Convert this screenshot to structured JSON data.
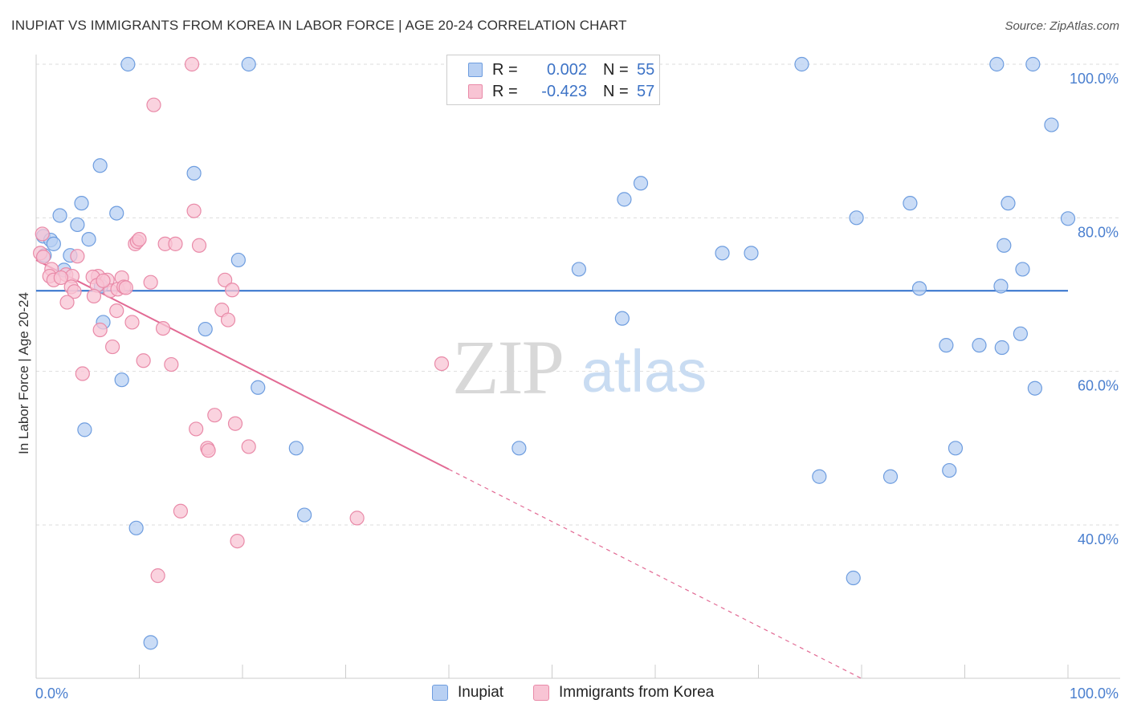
{
  "title": "INUPIAT VS IMMIGRANTS FROM KOREA IN LABOR FORCE | AGE 20-24 CORRELATION CHART",
  "source": "Source: ZipAtlas.com",
  "colors": {
    "blue_fill": "#b8d0f3",
    "blue_stroke": "#6e9ddf",
    "blue_line": "#2f6fcc",
    "pink_fill": "#f8c4d4",
    "pink_stroke": "#e98aa8",
    "pink_line": "#e26a94",
    "grid": "#dddddd",
    "axis": "#cccccc"
  },
  "legend": {
    "r_label": "R =",
    "n_label": "N =",
    "series": [
      {
        "r": "0.002",
        "n": "55"
      },
      {
        "r": "-0.423",
        "n": "57"
      }
    ]
  },
  "watermark": {
    "zip": "ZIP",
    "atlas": "atlas"
  },
  "chart_data": {
    "type": "scatter",
    "title": "INUPIAT VS IMMIGRANTS FROM KOREA IN LABOR FORCE | AGE 20-24 CORRELATION CHART",
    "xlabel": "",
    "ylabel": "In Labor Force | Age 20-24",
    "xlim": [
      0,
      100
    ],
    "ylim": [
      20,
      101
    ],
    "x_tick_labels": [
      "0.0%",
      "100.0%"
    ],
    "y_ticks": [
      40,
      60,
      80,
      100
    ],
    "y_tick_labels": [
      "40.0%",
      "60.0%",
      "80.0%",
      "100.0%"
    ],
    "series": [
      {
        "name": "Inupiat",
        "trend": {
          "x": [
            0,
            100
          ],
          "y": [
            70.5,
            70.5
          ],
          "solid_to": 100
        },
        "points": [
          [
            8.9,
            100
          ],
          [
            20.6,
            100
          ],
          [
            74.2,
            100
          ],
          [
            93.1,
            100
          ],
          [
            96.6,
            100
          ],
          [
            98.4,
            92.1
          ],
          [
            6.2,
            86.8
          ],
          [
            15.3,
            85.8
          ],
          [
            58.6,
            84.5
          ],
          [
            57.0,
            82.4
          ],
          [
            4.4,
            81.9
          ],
          [
            7.8,
            80.6
          ],
          [
            2.3,
            80.3
          ],
          [
            79.5,
            80.0
          ],
          [
            84.7,
            81.9
          ],
          [
            94.2,
            81.9
          ],
          [
            100.0,
            79.9
          ],
          [
            4.0,
            79.1
          ],
          [
            5.1,
            77.2
          ],
          [
            0.7,
            77.6
          ],
          [
            1.4,
            77.1
          ],
          [
            1.7,
            76.6
          ],
          [
            93.8,
            76.4
          ],
          [
            3.3,
            75.1
          ],
          [
            0.8,
            75.1
          ],
          [
            66.5,
            75.4
          ],
          [
            69.3,
            75.4
          ],
          [
            19.6,
            74.5
          ],
          [
            52.6,
            73.3
          ],
          [
            95.6,
            73.3
          ],
          [
            2.7,
            73.2
          ],
          [
            6.3,
            71.1
          ],
          [
            85.6,
            70.8
          ],
          [
            93.5,
            71.1
          ],
          [
            56.8,
            66.9
          ],
          [
            6.5,
            66.4
          ],
          [
            16.4,
            65.5
          ],
          [
            95.4,
            64.9
          ],
          [
            88.2,
            63.4
          ],
          [
            91.4,
            63.4
          ],
          [
            93.6,
            63.1
          ],
          [
            8.3,
            58.9
          ],
          [
            21.5,
            57.9
          ],
          [
            96.8,
            57.8
          ],
          [
            4.7,
            52.4
          ],
          [
            25.2,
            50.0
          ],
          [
            46.8,
            50.0
          ],
          [
            89.1,
            50.0
          ],
          [
            75.9,
            46.3
          ],
          [
            82.8,
            46.3
          ],
          [
            88.5,
            47.1
          ],
          [
            26.0,
            41.3
          ],
          [
            9.7,
            39.6
          ],
          [
            79.2,
            33.1
          ],
          [
            11.1,
            24.7
          ]
        ]
      },
      {
        "name": "Immigrants from Korea",
        "trend": {
          "x": [
            0,
            80
          ],
          "y": [
            74.5,
            20.0
          ],
          "solid_to": 40
        },
        "points": [
          [
            15.1,
            100
          ],
          [
            11.4,
            94.7
          ],
          [
            15.3,
            80.9
          ],
          [
            0.6,
            77.9
          ],
          [
            9.6,
            76.6
          ],
          [
            9.8,
            76.9
          ],
          [
            10.0,
            77.2
          ],
          [
            12.5,
            76.6
          ],
          [
            13.5,
            76.6
          ],
          [
            15.8,
            76.4
          ],
          [
            0.4,
            75.4
          ],
          [
            0.7,
            74.9
          ],
          [
            4.0,
            75.0
          ],
          [
            1.5,
            73.3
          ],
          [
            1.3,
            72.4
          ],
          [
            2.9,
            72.6
          ],
          [
            3.5,
            72.4
          ],
          [
            1.7,
            71.9
          ],
          [
            2.4,
            72.2
          ],
          [
            6.0,
            72.4
          ],
          [
            6.9,
            71.9
          ],
          [
            8.3,
            72.2
          ],
          [
            5.5,
            72.3
          ],
          [
            11.1,
            71.6
          ],
          [
            18.3,
            71.9
          ],
          [
            3.4,
            71.0
          ],
          [
            3.7,
            70.4
          ],
          [
            5.9,
            71.2
          ],
          [
            7.2,
            70.5
          ],
          [
            7.9,
            70.7
          ],
          [
            8.5,
            71.0
          ],
          [
            19.0,
            70.6
          ],
          [
            5.6,
            69.8
          ],
          [
            3.0,
            69.0
          ],
          [
            18.0,
            68.0
          ],
          [
            7.8,
            67.9
          ],
          [
            18.6,
            66.7
          ],
          [
            9.3,
            66.4
          ],
          [
            6.2,
            65.4
          ],
          [
            12.3,
            65.6
          ],
          [
            7.4,
            63.2
          ],
          [
            10.4,
            61.4
          ],
          [
            13.1,
            60.9
          ],
          [
            39.3,
            61.0
          ],
          [
            4.5,
            59.7
          ],
          [
            17.3,
            54.3
          ],
          [
            19.3,
            53.2
          ],
          [
            15.5,
            52.5
          ],
          [
            16.6,
            50.0
          ],
          [
            16.7,
            49.7
          ],
          [
            20.6,
            50.2
          ],
          [
            14.0,
            41.8
          ],
          [
            31.1,
            40.9
          ],
          [
            19.5,
            37.9
          ],
          [
            11.8,
            33.4
          ],
          [
            6.5,
            71.8
          ],
          [
            8.7,
            70.9
          ]
        ]
      }
    ]
  },
  "bottom_legend": [
    "Inupiat",
    "Immigrants from Korea"
  ]
}
